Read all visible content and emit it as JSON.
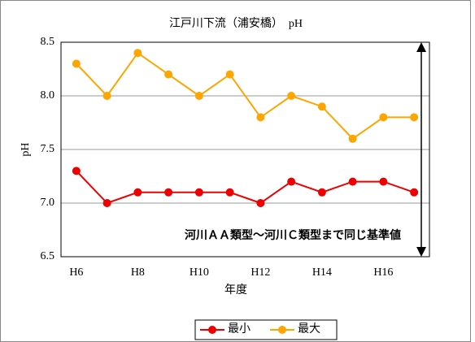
{
  "chart_data": {
    "type": "line",
    "title": "江戸川下流（浦安橋）　pH",
    "categories": [
      "H6",
      null,
      "H8",
      null,
      "H10",
      null,
      "H12",
      null,
      "H14",
      null,
      "H16",
      null
    ],
    "series": [
      {
        "name": "最小",
        "color": "#ee0000",
        "values": [
          7.3,
          7.0,
          7.1,
          7.1,
          7.1,
          7.1,
          7.0,
          7.2,
          7.1,
          7.2,
          7.2,
          7.1
        ]
      },
      {
        "name": "最大",
        "color": "#ffa500",
        "values": [
          8.3,
          8.0,
          8.4,
          8.2,
          8.0,
          8.2,
          7.8,
          8.0,
          7.9,
          7.6,
          7.8,
          7.8
        ]
      }
    ],
    "ylim": [
      6.5,
      8.5
    ],
    "yticks": [
      6.5,
      {
        "value": 7,
        "label": "7.0"
      },
      7.5,
      {
        "value": 8,
        "label": "8.0"
      },
      8.5
    ],
    "grid": true,
    "xlabel": "年度",
    "ylabel": "pH",
    "annotation": "河川ＡＡ類型～河川Ｃ類型まで同じ基準値"
  }
}
